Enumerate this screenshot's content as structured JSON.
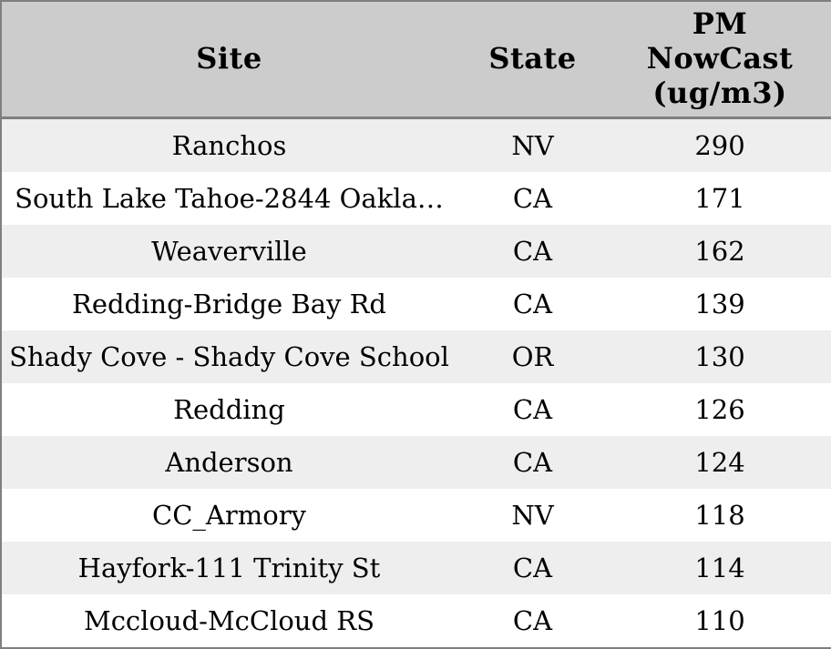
{
  "colors": {
    "header_bg": "#cccccc",
    "row_stripe_bg": "#eeeeee",
    "row_bg": "#ffffff",
    "border": "#7f7f7f",
    "text": "#000000"
  },
  "chart_data": {
    "type": "table",
    "title": "",
    "columns": [
      "Site",
      "State",
      "PM\nNowCast\n(ug/m3)"
    ],
    "rows": [
      [
        "Ranchos",
        "NV",
        290
      ],
      [
        "South Lake Tahoe-2844 Oakla…",
        "CA",
        171
      ],
      [
        "Weaverville",
        "CA",
        162
      ],
      [
        "Redding-Bridge Bay Rd",
        "CA",
        139
      ],
      [
        "Shady Cove - Shady Cove School",
        "OR",
        130
      ],
      [
        "Redding",
        "CA",
        126
      ],
      [
        "Anderson",
        "CA",
        124
      ],
      [
        "CC_Armory",
        "NV",
        118
      ],
      [
        "Hayfork-111 Trinity St",
        "CA",
        114
      ],
      [
        "Mccloud-McCloud RS",
        "CA",
        110
      ]
    ]
  }
}
